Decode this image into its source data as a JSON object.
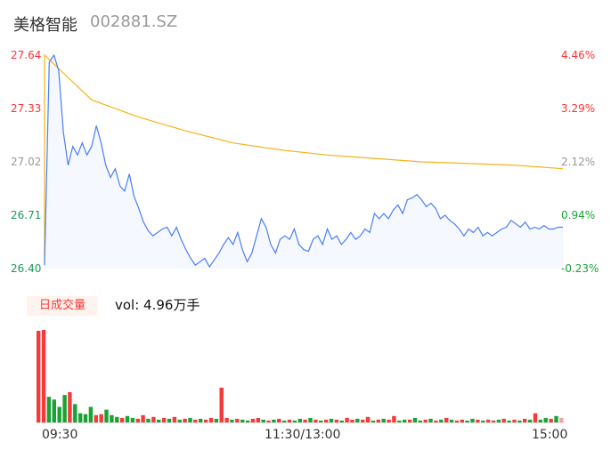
{
  "header": {
    "name": "美格智能",
    "code": "002881.SZ"
  },
  "colors": {
    "price": "#4a7ef5",
    "avg": "#f7b21a",
    "up": "#f53a3a",
    "down": "#1aa334",
    "flat": "#999999"
  },
  "chart_data": {
    "type": "line",
    "yticks_left": [
      "27.64",
      "27.33",
      "27.02",
      "26.71",
      "26.40"
    ],
    "yticks_right": [
      "4.46%",
      "3.29%",
      "2.12%",
      "0.94%",
      "-0.23%"
    ],
    "ylim": [
      26.4,
      27.64
    ],
    "xticks": [
      "09:30",
      "11:30/13:00",
      "15:00"
    ],
    "price": [
      26.42,
      27.6,
      27.64,
      27.55,
      27.19,
      27.0,
      27.11,
      27.06,
      27.13,
      27.06,
      27.11,
      27.23,
      27.13,
      27.0,
      26.93,
      26.98,
      26.88,
      26.85,
      26.95,
      26.82,
      26.75,
      26.67,
      26.62,
      26.59,
      26.61,
      26.63,
      26.64,
      26.59,
      26.64,
      26.57,
      26.51,
      26.46,
      26.42,
      26.44,
      26.46,
      26.41,
      26.45,
      26.49,
      26.54,
      26.58,
      26.54,
      26.61,
      26.51,
      26.44,
      26.49,
      26.59,
      26.69,
      26.64,
      26.54,
      26.49,
      26.57,
      26.59,
      26.57,
      26.63,
      26.54,
      26.51,
      26.5,
      26.57,
      26.59,
      26.54,
      26.63,
      26.57,
      26.59,
      26.54,
      26.57,
      26.61,
      26.57,
      26.59,
      26.63,
      26.61,
      26.72,
      26.69,
      26.72,
      26.69,
      26.74,
      26.77,
      26.72,
      26.8,
      26.81,
      26.83,
      26.8,
      26.76,
      26.78,
      26.75,
      26.69,
      26.71,
      26.68,
      26.66,
      26.63,
      26.59,
      26.63,
      26.61,
      26.64,
      26.59,
      26.61,
      26.59,
      26.61,
      26.63,
      26.64,
      26.68,
      26.66,
      26.64,
      26.67,
      26.63,
      26.64,
      26.63,
      26.65,
      26.63,
      26.63,
      26.64,
      26.64
    ],
    "avg": [
      27.64,
      27.38,
      27.28,
      27.2,
      27.13,
      27.09,
      27.06,
      27.04,
      27.02,
      27.01,
      27.0,
      26.98
    ],
    "volume_title": "日成交量",
    "volume_label": "vol: 4.96万手",
    "volume": [
      100,
      101,
      28,
      25,
      17,
      30,
      33,
      20,
      10,
      9,
      17,
      8,
      9,
      14,
      8,
      6,
      5,
      7,
      5,
      4,
      8,
      4,
      6,
      3,
      5,
      4,
      6,
      3,
      4,
      5,
      3,
      4,
      3,
      5,
      4,
      38,
      5,
      3,
      4,
      3,
      2,
      4,
      5,
      3,
      2,
      3,
      4,
      2,
      3,
      2,
      4,
      3,
      5,
      3,
      2,
      3,
      4,
      3,
      2,
      5,
      3,
      4,
      3,
      6,
      2,
      3,
      4,
      3,
      7,
      2,
      3,
      3,
      5,
      2,
      3,
      4,
      2,
      3,
      5,
      3,
      2,
      3,
      2,
      4,
      3,
      2,
      3,
      2,
      3,
      4,
      2,
      3,
      2,
      4,
      3,
      10,
      3,
      5,
      4,
      7,
      5
    ],
    "volume_dir": [
      "u",
      "u",
      "d",
      "d",
      "d",
      "d",
      "u",
      "d",
      "d",
      "d",
      "d",
      "u",
      "u",
      "d",
      "d",
      "d",
      "u",
      "d",
      "d",
      "u",
      "u",
      "d",
      "u",
      "d",
      "u",
      "d",
      "u",
      "d",
      "u",
      "d",
      "u",
      "d",
      "u",
      "u",
      "d",
      "u",
      "u",
      "d",
      "u",
      "d",
      "d",
      "u",
      "u",
      "d",
      "u",
      "d",
      "u",
      "d",
      "u",
      "d",
      "d",
      "u",
      "d",
      "u",
      "d",
      "u",
      "d",
      "u",
      "d",
      "u",
      "u",
      "d",
      "u",
      "u",
      "d",
      "u",
      "d",
      "u",
      "u",
      "d",
      "d",
      "u",
      "d",
      "d",
      "u",
      "d",
      "u",
      "d",
      "u",
      "d",
      "u",
      "u",
      "d",
      "d",
      "u",
      "d",
      "u",
      "u",
      "d",
      "u",
      "d",
      "u",
      "d",
      "u",
      "d",
      "u",
      "d",
      "d",
      "u",
      "d",
      "f"
    ]
  }
}
